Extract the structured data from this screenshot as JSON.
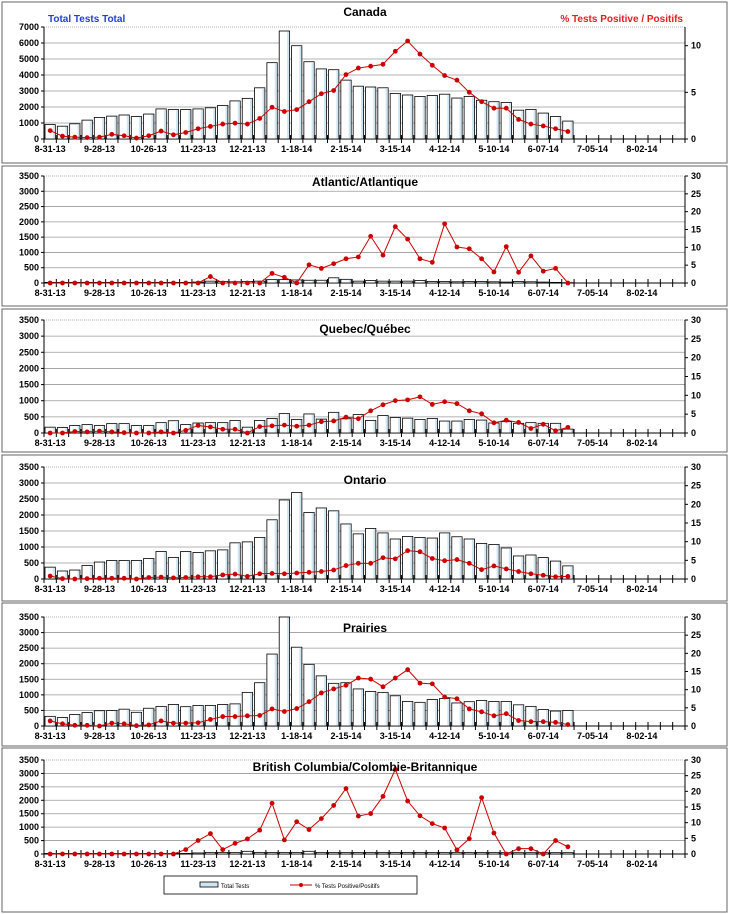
{
  "colors": {
    "bar_fill": "#ffffff",
    "bar_shade": "#cfe6f2",
    "bar_stroke": "#000000",
    "line": "#cc0000",
    "left_header": "#1f3fd6",
    "right_header": "#e02020",
    "grid": "#9a9a9a"
  },
  "legend": {
    "bar_label": "Total Tests",
    "line_label": "% Tests Positive/Positifs"
  },
  "chart_data": [
    {
      "type": "bar+line",
      "title": "Canada",
      "left_header": "Total Tests Total",
      "right_header": "% Tests Positive / Positifs",
      "x_tick_labels": [
        "8-31-13",
        "9-28-13",
        "10-26-13",
        "11-23-13",
        "12-21-13",
        "1-18-14",
        "2-15-14",
        "3-15-14",
        "4-12-14",
        "5-10-14",
        "6-07-14",
        "7-05-14",
        "8-02-14"
      ],
      "weeks": 52,
      "ylim": [
        0,
        7000
      ],
      "yticks": [
        0,
        1000,
        2000,
        3000,
        4000,
        5000,
        6000,
        7000
      ],
      "y2lim": [
        0,
        12
      ],
      "y2ticks": [
        0,
        5,
        10
      ],
      "total_tests": [
        900,
        800,
        950,
        1180,
        1350,
        1430,
        1500,
        1400,
        1560,
        1880,
        1840,
        1840,
        1880,
        1950,
        2100,
        2380,
        2540,
        3200,
        4770,
        6750,
        5830,
        4830,
        4380,
        4330,
        3680,
        3300,
        3250,
        3200,
        2850,
        2750,
        2660,
        2720,
        2800,
        2560,
        2660,
        2420,
        2330,
        2280,
        1800,
        1850,
        1620,
        1400,
        1120
      ],
      "pct_positive": [
        0.9,
        0.3,
        0.2,
        0.15,
        0.2,
        0.5,
        0.35,
        0.1,
        0.35,
        0.85,
        0.45,
        0.7,
        1.1,
        1.35,
        1.6,
        1.7,
        1.6,
        2.2,
        3.4,
        2.95,
        3.15,
        4.0,
        4.85,
        5.2,
        6.9,
        7.6,
        7.8,
        8.0,
        9.4,
        10.5,
        9.1,
        7.9,
        6.8,
        6.3,
        5.0,
        4.0,
        3.3,
        3.3,
        2.1,
        1.6,
        1.4,
        1.1,
        0.8
      ]
    },
    {
      "type": "bar+line",
      "title": "Atlantic/Atlantique",
      "x_tick_labels": [
        "8-31-13",
        "9-28-13",
        "10-26-13",
        "11-23-13",
        "12-21-13",
        "1-18-14",
        "2-15-14",
        "3-15-14",
        "4-12-14",
        "5-10-14",
        "6-07-14",
        "7-05-14",
        "8-02-14"
      ],
      "weeks": 52,
      "ylim": [
        0,
        3500
      ],
      "yticks": [
        0,
        500,
        1000,
        1500,
        2000,
        2500,
        3000,
        3500
      ],
      "y2lim": [
        0,
        30
      ],
      "y2ticks": [
        0,
        5,
        10,
        15,
        20,
        25,
        30
      ],
      "total_tests": [
        20,
        20,
        20,
        20,
        20,
        20,
        20,
        20,
        20,
        20,
        20,
        20,
        30,
        60,
        50,
        40,
        50,
        60,
        110,
        110,
        100,
        90,
        90,
        170,
        120,
        60,
        80,
        60,
        60,
        60,
        80,
        50,
        50,
        40,
        50,
        50,
        40,
        30,
        50,
        40,
        30,
        20,
        10
      ],
      "pct_positive": [
        0,
        0,
        0,
        0,
        0,
        0,
        0,
        0,
        0,
        0,
        0,
        0,
        0,
        1.8,
        0,
        0,
        0,
        0,
        2.7,
        1.6,
        0,
        5.1,
        4.1,
        5.4,
        6.8,
        7.3,
        13.1,
        7.8,
        15.8,
        12.3,
        6.8,
        5.8,
        16.6,
        10.1,
        9.6,
        6.8,
        3.1,
        10.2,
        3.0,
        7.6,
        3.3,
        4.1,
        0
      ]
    },
    {
      "type": "bar+line",
      "title": "Quebec/Québec",
      "x_tick_labels": [
        "8-31-13",
        "9-28-13",
        "10-26-13",
        "11-23-13",
        "12-21-13",
        "1-18-14",
        "2-15-14",
        "3-15-14",
        "4-12-14",
        "5-10-14",
        "6-07-14",
        "7-05-14",
        "8-02-14"
      ],
      "weeks": 52,
      "ylim": [
        0,
        3500
      ],
      "yticks": [
        0,
        500,
        1000,
        1500,
        2000,
        2500,
        3000,
        3500
      ],
      "y2lim": [
        0,
        30
      ],
      "y2ticks": [
        0,
        5,
        10,
        15,
        20,
        25,
        30
      ],
      "total_tests": [
        180,
        170,
        230,
        260,
        230,
        290,
        290,
        230,
        230,
        320,
        380,
        260,
        310,
        320,
        320,
        390,
        180,
        390,
        450,
        600,
        420,
        590,
        430,
        640,
        440,
        570,
        390,
        540,
        480,
        460,
        420,
        450,
        370,
        370,
        420,
        400,
        310,
        350,
        300,
        320,
        300,
        300,
        120
      ],
      "pct_positive": [
        0,
        0,
        0.4,
        0.3,
        0.5,
        0.3,
        0.1,
        0,
        0,
        0.3,
        0,
        0.7,
        2.0,
        1.6,
        1.0,
        1.0,
        0,
        1.7,
        1.9,
        2.1,
        1.8,
        2.1,
        3.0,
        3.2,
        4.2,
        3.8,
        5.9,
        7.5,
        8.6,
        8.8,
        9.6,
        7.6,
        8.3,
        7.8,
        5.9,
        5.1,
        2.7,
        3.4,
        2.8,
        1.2,
        2.3,
        0.6,
        1.5
      ]
    },
    {
      "type": "bar+line",
      "title": "Ontario",
      "x_tick_labels": [
        "8-31-13",
        "9-28-13",
        "10-26-13",
        "11-23-13",
        "12-21-13",
        "1-18-14",
        "2-15-14",
        "3-15-14",
        "4-12-14",
        "5-10-14",
        "6-07-14",
        "7-05-14",
        "8-02-14"
      ],
      "weeks": 52,
      "ylim": [
        0,
        3500
      ],
      "yticks": [
        0,
        500,
        1000,
        1500,
        2000,
        2500,
        3000,
        3500
      ],
      "y2lim": [
        0,
        30
      ],
      "y2ticks": [
        0,
        5,
        10,
        15,
        20,
        25,
        30
      ],
      "total_tests": [
        370,
        250,
        280,
        420,
        530,
        580,
        580,
        580,
        640,
        860,
        670,
        860,
        830,
        880,
        910,
        1130,
        1160,
        1300,
        1850,
        2470,
        2700,
        2080,
        2220,
        2130,
        1720,
        1410,
        1580,
        1440,
        1250,
        1330,
        1300,
        1280,
        1440,
        1320,
        1250,
        1110,
        1080,
        970,
        720,
        750,
        670,
        560,
        410
      ],
      "pct_positive": [
        0.8,
        0.1,
        0,
        0.1,
        0.2,
        0.2,
        0.2,
        0,
        0.4,
        0.5,
        0.3,
        0.4,
        0.6,
        0.6,
        1.1,
        1.3,
        0.7,
        1.4,
        1.5,
        1.4,
        1.6,
        1.8,
        2.0,
        2.4,
        3.6,
        4.2,
        4.2,
        5.7,
        5.4,
        7.6,
        7.3,
        5.5,
        4.9,
        5.2,
        4.2,
        2.5,
        3.5,
        2.7,
        2.0,
        1.4,
        1.0,
        0.6,
        0.7
      ]
    },
    {
      "type": "bar+line",
      "title": "Prairies",
      "x_tick_labels": [
        "8-31-13",
        "9-28-13",
        "10-26-13",
        "11-23-13",
        "12-21-13",
        "1-18-14",
        "2-15-14",
        "3-15-14",
        "4-12-14",
        "5-10-14",
        "6-07-14",
        "7-05-14",
        "8-02-14"
      ],
      "weeks": 52,
      "ylim": [
        0,
        3500
      ],
      "yticks": [
        0,
        500,
        1000,
        1500,
        2000,
        2500,
        3000,
        3500
      ],
      "y2lim": [
        0,
        30
      ],
      "y2ticks": [
        0,
        5,
        10,
        15,
        20,
        25,
        30
      ],
      "total_tests": [
        310,
        270,
        370,
        430,
        490,
        500,
        540,
        440,
        570,
        630,
        690,
        620,
        660,
        660,
        690,
        710,
        1080,
        1390,
        2310,
        3500,
        2530,
        1980,
        1610,
        1370,
        1390,
        1190,
        1110,
        1080,
        970,
        790,
        760,
        850,
        880,
        740,
        780,
        820,
        790,
        790,
        680,
        630,
        530,
        480,
        500
      ],
      "pct_positive": [
        1.4,
        0.6,
        0.2,
        0.2,
        0,
        0.8,
        0.6,
        0.1,
        0.3,
        1.4,
        0.8,
        0.8,
        0.9,
        1.8,
        2.6,
        2.6,
        2.8,
        2.9,
        4.7,
        4.0,
        4.8,
        6.7,
        9.1,
        10.2,
        11.2,
        13.2,
        12.9,
        10.8,
        13.2,
        15.5,
        11.8,
        11.6,
        8.0,
        7.5,
        4.7,
        3.9,
        2.8,
        3.4,
        1.5,
        1.2,
        1.2,
        1.0,
        0.4
      ]
    },
    {
      "type": "bar+line",
      "title": "British Columbia/Colombie-Britannique",
      "x_tick_labels": [
        "8-31-13",
        "9-28-13",
        "10-26-13",
        "11-23-13",
        "12-21-13",
        "1-18-14",
        "2-15-14",
        "3-15-14",
        "4-12-14",
        "5-10-14",
        "6-07-14",
        "7-05-14",
        "8-02-14"
      ],
      "weeks": 52,
      "ylim": [
        0,
        3500
      ],
      "yticks": [
        0,
        500,
        1000,
        1500,
        2000,
        2500,
        3000,
        3500
      ],
      "y2lim": [
        0,
        30
      ],
      "y2ticks": [
        0,
        5,
        10,
        15,
        20,
        25,
        30
      ],
      "total_tests": [
        20,
        20,
        20,
        20,
        20,
        20,
        20,
        20,
        20,
        20,
        20,
        20,
        40,
        60,
        60,
        60,
        100,
        60,
        60,
        60,
        60,
        100,
        60,
        60,
        60,
        60,
        60,
        60,
        60,
        60,
        60,
        60,
        60,
        60,
        60,
        60,
        60,
        50,
        50,
        50,
        50,
        50,
        50
      ],
      "pct_positive": [
        0,
        0,
        0,
        0,
        0,
        0,
        0,
        0,
        0,
        0,
        0,
        1.4,
        4.3,
        6.5,
        1.4,
        3.4,
        4.8,
        7.6,
        16.2,
        4.5,
        10.3,
        7.8,
        11.3,
        15.5,
        20.9,
        12.1,
        12.9,
        18.4,
        27.0,
        16.9,
        12.2,
        9.7,
        8.3,
        1.3,
        4.9,
        18.0,
        6.7,
        0,
        1.7,
        1.7,
        0,
        4.3,
        2.3
      ]
    }
  ]
}
